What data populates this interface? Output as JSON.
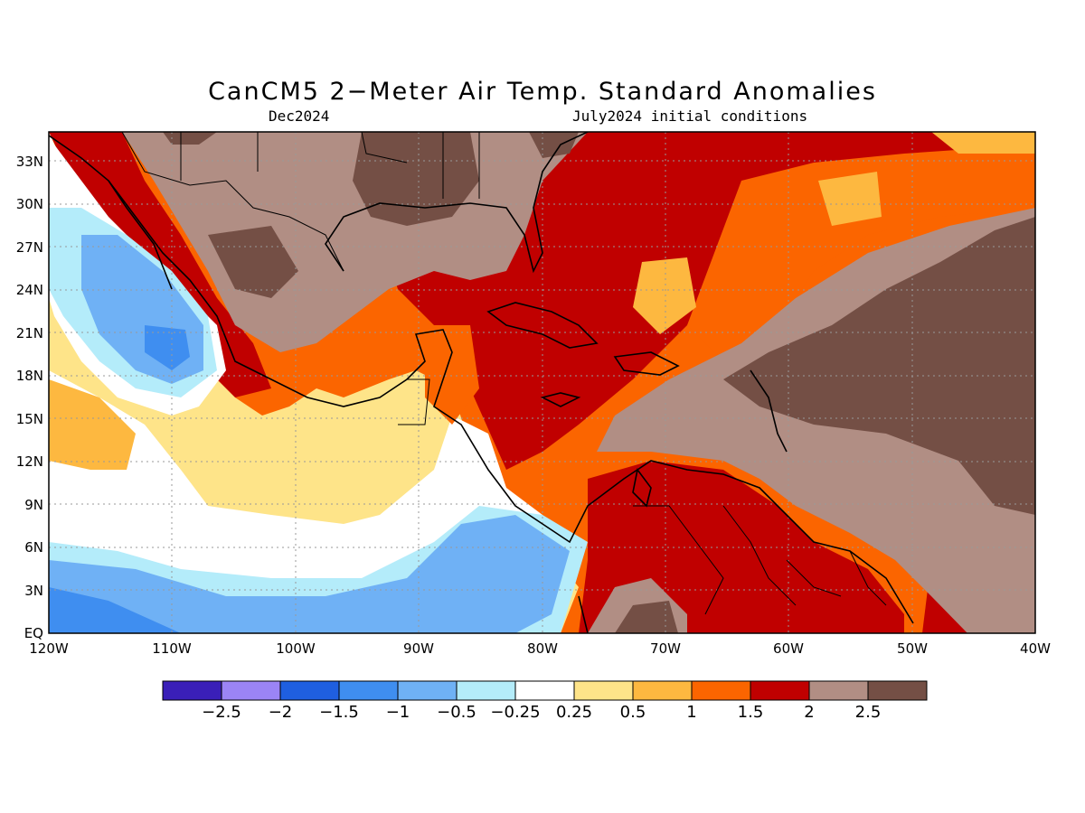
{
  "title": "CanCM5 2−Meter Air Temp. Standard Anomalies",
  "subtitle_left": "Dec2024",
  "subtitle_right": "July2024 initial conditions",
  "map": {
    "lon_range": [
      -120,
      -40
    ],
    "lat_range": [
      0,
      35
    ],
    "lat_ticks": [
      "33N",
      "30N",
      "27N",
      "24N",
      "21N",
      "18N",
      "15N",
      "12N",
      "9N",
      "6N",
      "3N",
      "EQ"
    ],
    "lon_ticks": [
      "120W",
      "110W",
      "100W",
      "90W",
      "80W",
      "70W",
      "60W",
      "50W",
      "40W"
    ],
    "dominant_regions": [
      {
        "region": "Eastern Pacific off Baja California",
        "category": "-1.5 to -0.5"
      },
      {
        "region": "Equatorial Eastern Pacific",
        "category": "-1 to -0.25"
      },
      {
        "region": "Gulf of Mexico / Caribbean",
        "category": "1 to 2"
      },
      {
        "region": "Central Atlantic / Southern US",
        "category": ">2"
      }
    ]
  },
  "colorbar": {
    "labels": [
      "−2.5",
      "−2",
      "−1.5",
      "−1",
      "−0.5",
      "−0.25",
      "0.25",
      "0.5",
      "1",
      "1.5",
      "2",
      "2.5"
    ],
    "colors": [
      "#3a1fb8",
      "#9b84f5",
      "#1f5fe0",
      "#3f8ef0",
      "#6fb1f5",
      "#b4ecfa",
      "#ffffff",
      "#fee489",
      "#fdb840",
      "#fb6500",
      "#c00000",
      "#b18e84",
      "#744f45"
    ]
  }
}
